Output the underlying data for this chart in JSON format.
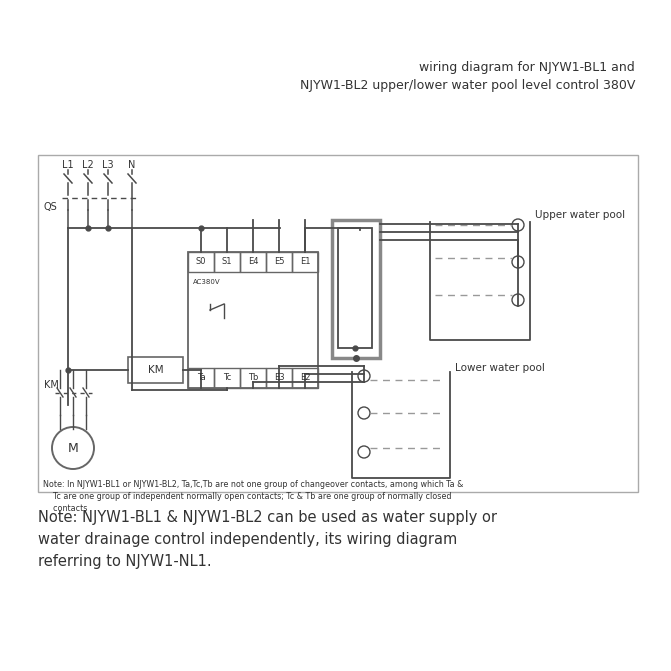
{
  "title_line1": "wiring diagram for NJYW1-BL1 and",
  "title_line2": "NJYW1-BL2 upper/lower water pool level control 380V",
  "note_inside_line1": "Note: In NJYW1-BL1 or NJYW1-BL2, Ta,Tc,Tb are not one group of changeover contacts, among which Ta &",
  "note_inside_line2": "    Tc are one group of independent normally open contacts; Tc & Tb are one group of normally closed",
  "note_inside_line3": "    contacts",
  "note_outside": "Note: NJYW1-BL1 & NJYW1-BL2 can be used as water supply or\nwater drainage control independently, its wiring diagram\nreferring to NJYW1-NL1.",
  "bg_color": "#ffffff",
  "line_color": "#4a4a4a",
  "gray_color": "#888888",
  "text_color": "#333333",
  "dashed_color": "#999999",
  "box_edge": "#666666"
}
